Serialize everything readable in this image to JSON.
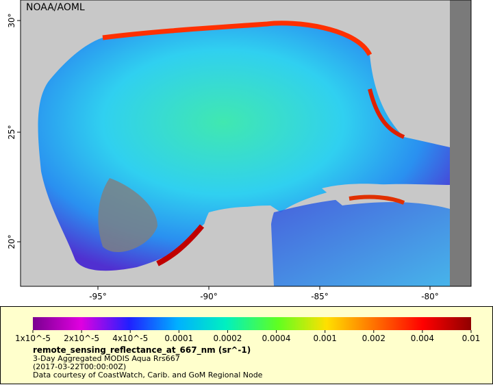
{
  "map": {
    "attribution": "NOAA/AOML",
    "lat_labels": [
      "30°",
      "25°",
      "20°"
    ],
    "lon_labels": [
      "-95°",
      "-90°",
      "-85°",
      "-80°"
    ]
  },
  "colorbar": {
    "labels": [
      "1x10^-5",
      "2x10^-5",
      "4x10^-5",
      "0.0001",
      "0.0002",
      "0.0004",
      "0.001",
      "0.002",
      "0.004",
      "0.01"
    ],
    "title": "remote_sensing_reflectance_at_667_nm (sr^-1)",
    "lines": [
      "3-Day Aggregated MODIS Aqua Rrs667",
      "(2017-03-22T00:00:00Z)",
      "Data courtesy of CoastWatch, Carib. and GoM Regional Node"
    ]
  }
}
